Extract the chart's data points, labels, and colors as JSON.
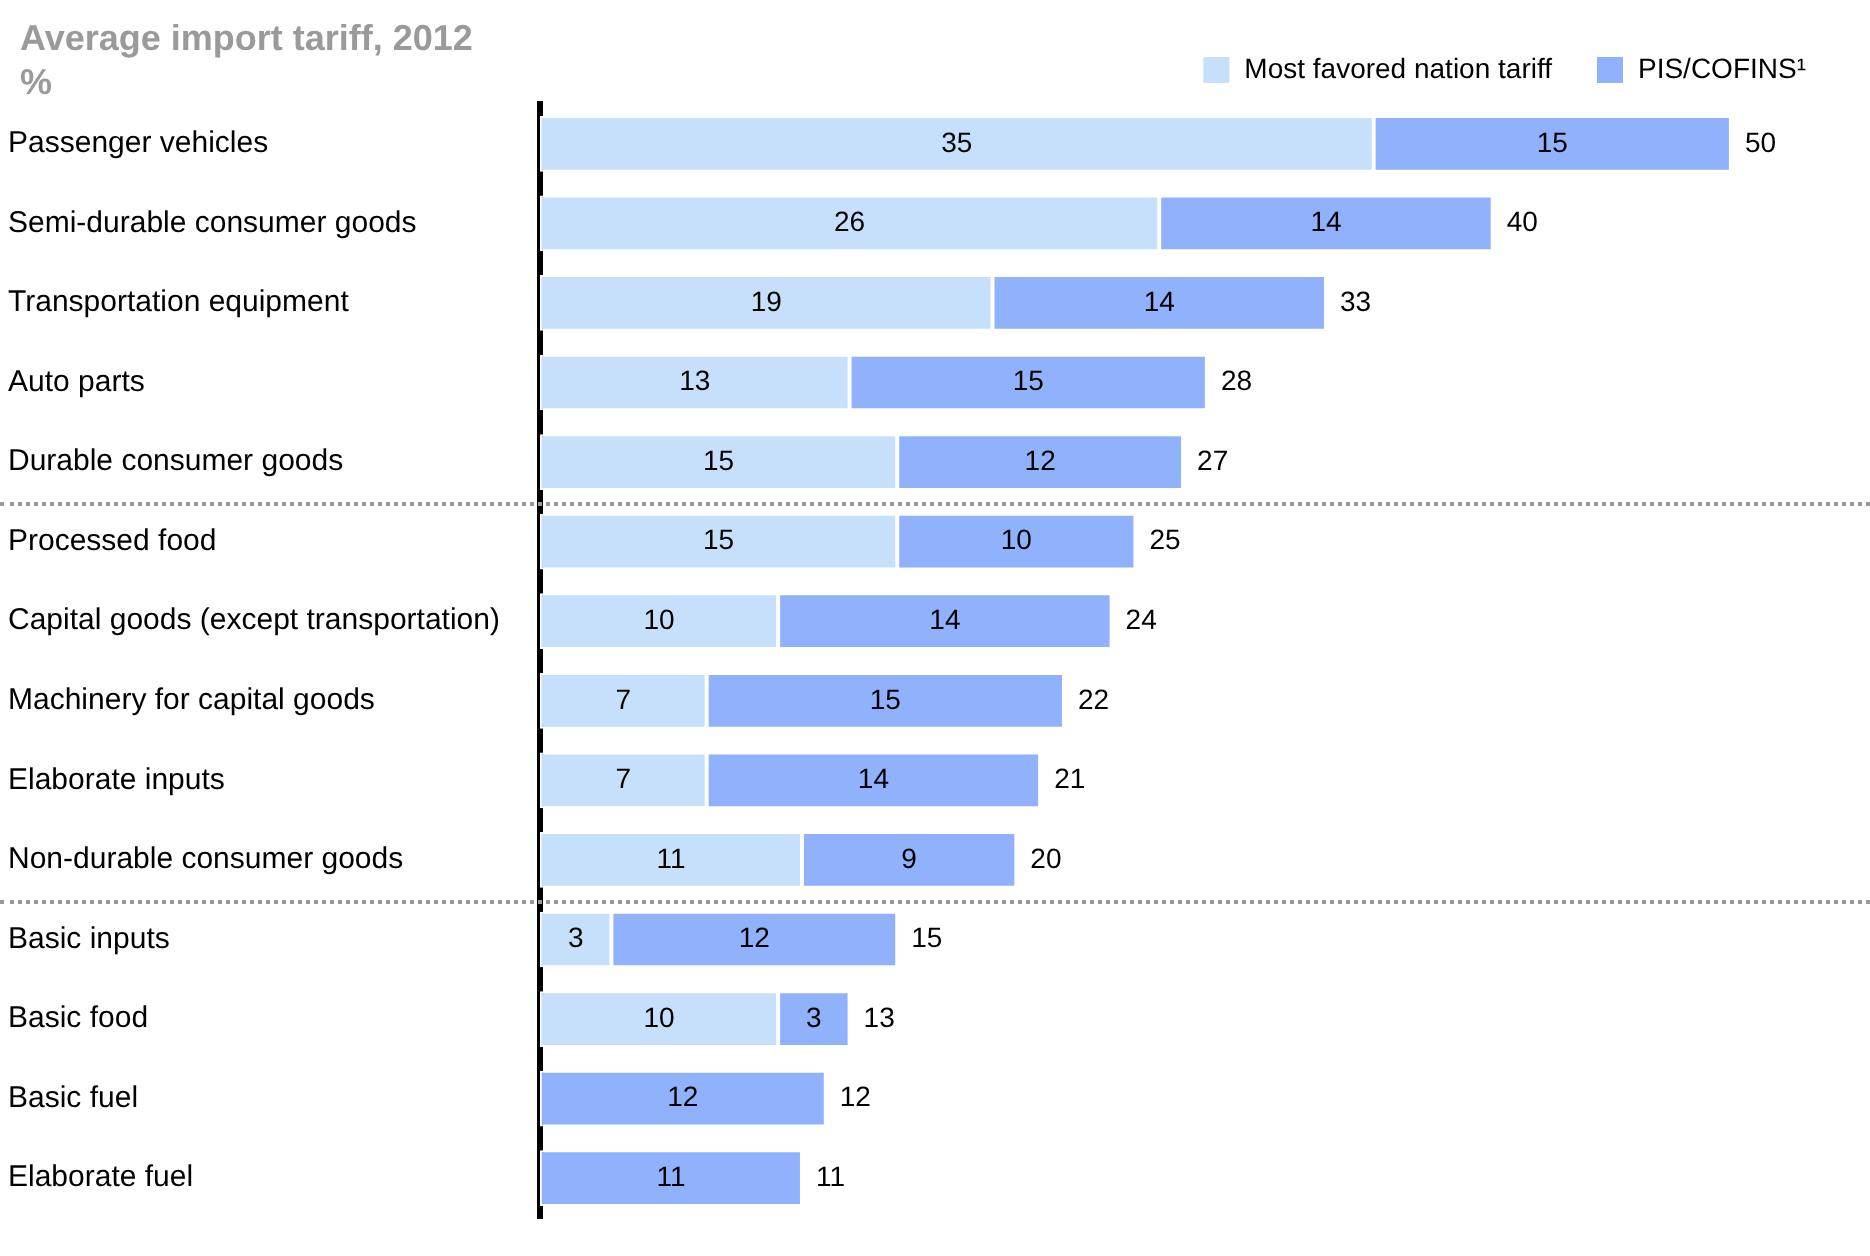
{
  "chart_data": {
    "type": "bar",
    "orientation": "horizontal",
    "stacked": true,
    "title": "Average import tariff, 2012",
    "subtitle": "%",
    "categories": [
      "Passenger vehicles",
      "Semi-durable consumer goods",
      "Transportation equipment",
      "Auto parts",
      "Durable consumer goods",
      "Processed food",
      "Capital goods (except transportation)",
      "Machinery for capital goods",
      "Elaborate inputs",
      "Non-durable consumer goods",
      "Basic inputs",
      "Basic food",
      "Basic fuel",
      "Elaborate fuel"
    ],
    "series": [
      {
        "name": "Most favored nation tariff",
        "color": "#c6dffa",
        "values": [
          35,
          26,
          19,
          13,
          15,
          15,
          10,
          7,
          7,
          11,
          3,
          10,
          null,
          null
        ]
      },
      {
        "name": "PIS/COFINS¹",
        "color": "#90b1fb",
        "values": [
          15,
          14,
          14,
          15,
          12,
          10,
          14,
          15,
          14,
          9,
          12,
          3,
          12,
          11
        ]
      }
    ],
    "data_labels": true,
    "totals": [
      "50",
      "40",
      "33",
      "28",
      "27",
      "25",
      "24",
      "22",
      "21",
      "20",
      "15",
      "13",
      "12",
      "11"
    ],
    "legend": "top right",
    "grid": false
  }
}
